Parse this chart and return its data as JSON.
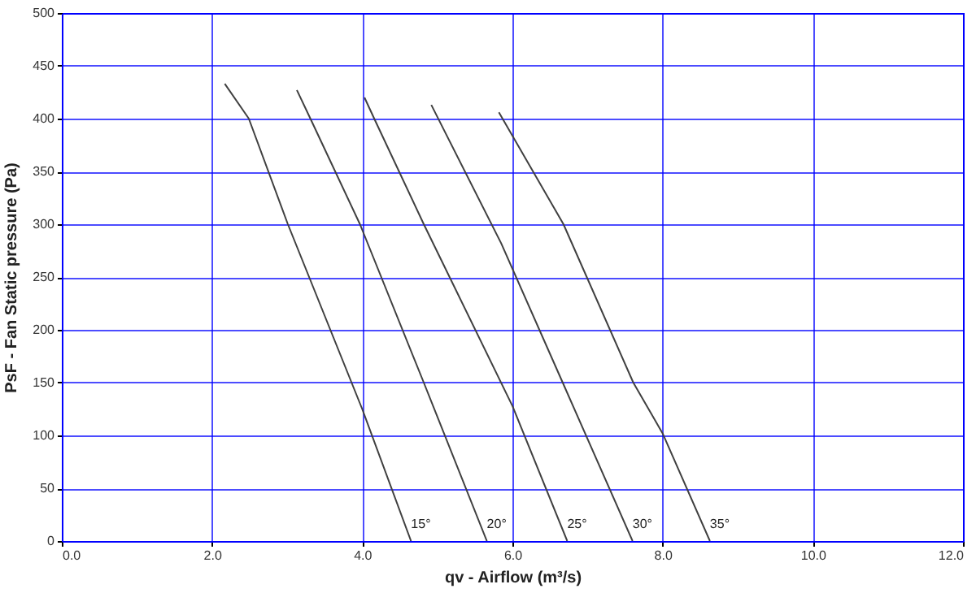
{
  "chart_data": {
    "type": "line",
    "xlabel": "qv - Airflow (m³/s)",
    "ylabel": "PsF - Fan Static pressure (Pa)",
    "xlim": [
      0,
      12
    ],
    "ylim": [
      0,
      500
    ],
    "xticks": [
      {
        "value": 0,
        "label": "0.0"
      },
      {
        "value": 2,
        "label": "2.0"
      },
      {
        "value": 4,
        "label": "4.0"
      },
      {
        "value": 6,
        "label": "6.0"
      },
      {
        "value": 8,
        "label": "8.0"
      },
      {
        "value": 10,
        "label": "10.0"
      },
      {
        "value": 12,
        "label": "12.0"
      }
    ],
    "yticks": [
      0,
      50,
      100,
      150,
      200,
      250,
      300,
      350,
      400,
      450,
      500
    ],
    "grid": true,
    "legend": false,
    "marker": "none",
    "line_style": "solid",
    "series": [
      {
        "name": "15°",
        "color": "#404040",
        "x": [
          2.17,
          2.49,
          3.01,
          4.0,
          4.65
        ],
        "values": [
          433,
          400,
          300,
          125,
          0
        ]
      },
      {
        "name": "20°",
        "color": "#404040",
        "x": [
          3.13,
          3.31,
          3.97,
          4.82,
          5.66
        ],
        "values": [
          427,
          400,
          300,
          150,
          0
        ]
      },
      {
        "name": "25°",
        "color": "#404040",
        "x": [
          4.03,
          4.16,
          4.82,
          6.0,
          6.73
        ],
        "values": [
          420,
          400,
          300,
          128,
          0
        ]
      },
      {
        "name": "30°",
        "color": "#404040",
        "x": [
          4.92,
          5.85,
          6.67,
          7.6
        ],
        "values": [
          413,
          282,
          150,
          0
        ]
      },
      {
        "name": "35°",
        "color": "#404040",
        "x": [
          5.82,
          6.68,
          7.61,
          8.0,
          8.63
        ],
        "values": [
          406,
          300,
          150,
          102,
          0
        ]
      }
    ]
  }
}
